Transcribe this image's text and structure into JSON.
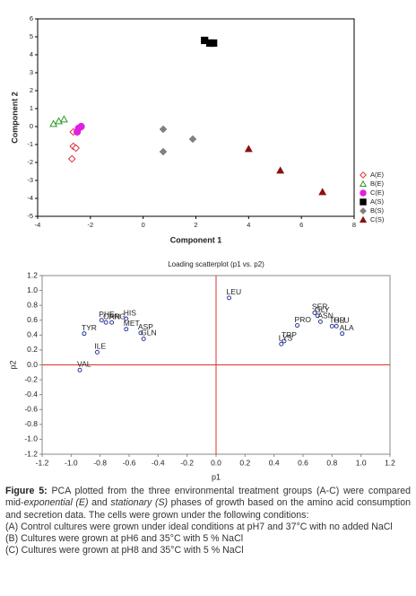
{
  "chart_data": [
    {
      "type": "scatter",
      "x_label": "Component 1",
      "y_label": "Component 2",
      "xlim": [
        -4,
        8
      ],
      "xticks": [
        -4,
        -2,
        0,
        2,
        4,
        6,
        8
      ],
      "ylim": [
        -5,
        6
      ],
      "yticks": [
        -5,
        -4,
        -3,
        -2,
        -1,
        0,
        1,
        2,
        3,
        4,
        5,
        6
      ],
      "legend": "right",
      "series": [
        {
          "name": "A(E)",
          "color": "#e0303a",
          "marker": "diamond-open",
          "x": [
            -2.65,
            -2.65,
            -2.55,
            -2.7
          ],
          "values": [
            -0.3,
            -1.1,
            -1.2,
            -1.8
          ]
        },
        {
          "name": "B(E)",
          "color": "#2a9a2a",
          "marker": "triangle-open",
          "x": [
            -3.4,
            -3.2,
            -3.0
          ],
          "values": [
            0.15,
            0.3,
            0.4
          ]
        },
        {
          "name": "C(E)",
          "color": "#e020e0",
          "marker": "circle",
          "x": [
            -2.5,
            -2.45,
            -2.35
          ],
          "values": [
            -0.3,
            -0.1,
            0
          ]
        },
        {
          "name": "A(S)",
          "color": "#000000",
          "marker": "square",
          "x": [
            2.33,
            2.53,
            2.67
          ],
          "values": [
            4.8,
            4.65,
            4.65
          ]
        },
        {
          "name": "B(S)",
          "color": "#808080",
          "marker": "diamond",
          "x": [
            0.76,
            0.76,
            1.88
          ],
          "values": [
            -0.15,
            -1.4,
            -0.7
          ]
        },
        {
          "name": "C(S)",
          "color": "#8b1010",
          "marker": "triangle",
          "x": [
            4.0,
            5.2,
            6.8
          ],
          "values": [
            -1.25,
            -2.45,
            -3.65
          ]
        }
      ]
    },
    {
      "type": "scatter",
      "title": "Loading scatterplot (p1 vs. p2)",
      "x_label": "p1",
      "y_label": "p2",
      "xlim": [
        -1.2,
        1.2
      ],
      "xticks": [
        -1.2,
        {
          "value": -1,
          "label": "-1.0"
        },
        -0.8,
        -0.6,
        -0.4,
        -0.2,
        {
          "value": 0,
          "label": "0.0"
        },
        0.2,
        0.4,
        0.6,
        0.8,
        {
          "value": 1,
          "label": "1.0"
        },
        1.2
      ],
      "ylim": [
        -1.2,
        1.2
      ],
      "yticks": [
        -1.2,
        {
          "value": -1,
          "label": "-1.0"
        },
        -0.8,
        -0.6,
        -0.4,
        -0.2,
        {
          "value": 0,
          "label": "0.0"
        },
        0.2,
        0.4,
        0.6,
        0.8,
        {
          "value": 1,
          "label": "1.0"
        },
        1.2
      ],
      "reference_lines": {
        "x": 0,
        "y": 0,
        "color": "#e03030"
      },
      "color": "#2a3a9a",
      "point_labels": [
        "LEU",
        "VAL",
        "TYR",
        "ILE",
        "PHE",
        "ORN",
        "ARG",
        "HIS",
        "MET",
        "ASP",
        "GLN",
        "PRO",
        "SER",
        "GLY",
        "ASN",
        "THR",
        "GLU",
        "ALA",
        "LYS",
        "TRP"
      ],
      "x": [
        0.09,
        -0.94,
        -0.91,
        -0.82,
        -0.79,
        -0.76,
        -0.72,
        -0.62,
        -0.62,
        -0.52,
        -0.5,
        0.56,
        0.68,
        0.7,
        0.72,
        0.8,
        0.83,
        0.87,
        0.45,
        0.47
      ],
      "values": [
        0.9,
        -0.07,
        0.42,
        0.17,
        0.6,
        0.57,
        0.57,
        0.62,
        0.48,
        0.43,
        0.35,
        0.53,
        0.7,
        0.66,
        0.58,
        0.52,
        0.52,
        0.42,
        0.28,
        0.32
      ]
    }
  ],
  "caption": {
    "label": "Figure 5:",
    "text": [
      " PCA plotted from the three environmental treatment groups (A-C) were compared mid-",
      "exponential (E)",
      " and ",
      "stationary (S)",
      " phases of growth based on the amino acid consumption and secretion data.  The cells were grown under the following conditions:"
    ],
    "items": [
      "(A) Control cultures were grown under ideal conditions at pH7 and 37°C with no added NaCl",
      "(B) Cultures were grown at pH6 and 35°C with 5 % NaCl",
      "(C) Cultures were grown at pH8 and 35°C with 5 % NaCl"
    ]
  }
}
